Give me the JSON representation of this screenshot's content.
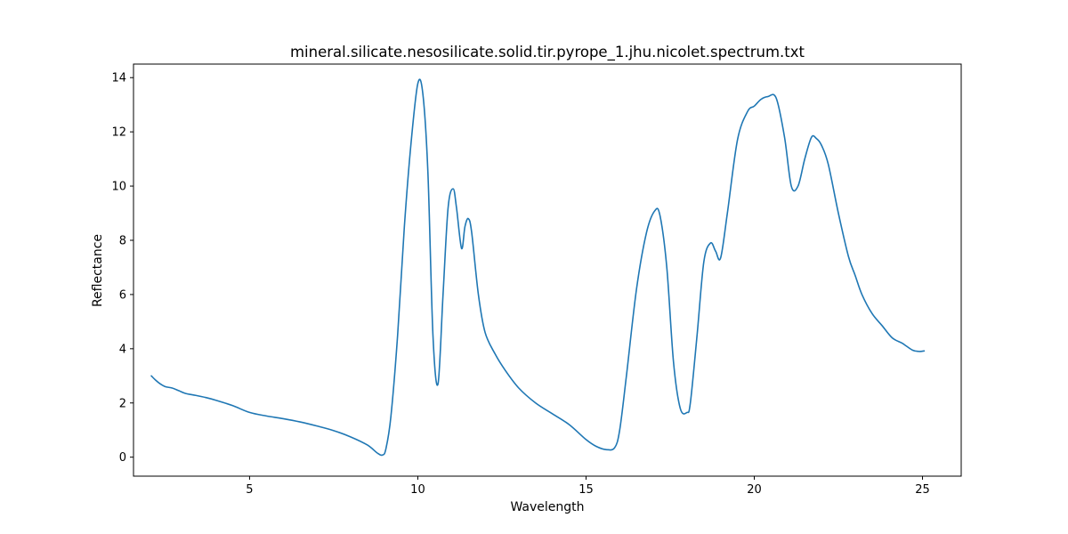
{
  "chart_data": {
    "type": "line",
    "title": "mineral.silicate.nesosilicate.solid.tir.pyrope_1.jhu.nicolet.spectrum.txt",
    "xlabel": "Wavelength",
    "ylabel": "Reflectance",
    "xlim": [
      1.55,
      26.15
    ],
    "ylim": [
      -0.7,
      14.5
    ],
    "xticks": [
      5,
      10,
      15,
      20,
      25
    ],
    "yticks": [
      0,
      2,
      4,
      6,
      8,
      10,
      12,
      14
    ],
    "grid": false,
    "series": [
      {
        "color": "#1f77b4",
        "x": [
          2.08,
          2.2,
          2.35,
          2.5,
          2.7,
          2.9,
          3.1,
          3.4,
          3.7,
          4.0,
          4.5,
          5.0,
          5.5,
          6.0,
          6.5,
          7.0,
          7.5,
          8.0,
          8.5,
          8.8,
          8.95,
          9.05,
          9.2,
          9.4,
          9.6,
          9.8,
          10.0,
          10.15,
          10.3,
          10.45,
          10.6,
          10.75,
          10.9,
          11.05,
          11.15,
          11.3,
          11.4,
          11.5,
          11.6,
          11.8,
          12.0,
          12.3,
          12.6,
          13.0,
          13.5,
          14.0,
          14.5,
          15.0,
          15.3,
          15.6,
          15.85,
          16.0,
          16.2,
          16.5,
          16.8,
          17.05,
          17.2,
          17.4,
          17.6,
          17.8,
          18.0,
          18.1,
          18.3,
          18.5,
          18.7,
          18.85,
          19.0,
          19.2,
          19.5,
          19.8,
          20.0,
          20.2,
          20.4,
          20.65,
          20.9,
          21.1,
          21.3,
          21.5,
          21.7,
          21.85,
          22.0,
          22.2,
          22.5,
          22.8,
          23.0,
          23.2,
          23.5,
          23.8,
          24.1,
          24.4,
          24.7,
          24.9,
          25.05
        ],
        "y": [
          3.0,
          2.85,
          2.7,
          2.6,
          2.55,
          2.45,
          2.35,
          2.28,
          2.2,
          2.1,
          1.9,
          1.65,
          1.52,
          1.42,
          1.3,
          1.15,
          0.98,
          0.75,
          0.45,
          0.15,
          0.08,
          0.3,
          1.5,
          4.5,
          8.5,
          11.6,
          13.78,
          13.4,
          10.5,
          4.5,
          2.7,
          6.0,
          9.2,
          9.9,
          9.2,
          7.7,
          8.5,
          8.8,
          8.3,
          6.0,
          4.6,
          3.8,
          3.2,
          2.55,
          2.0,
          1.6,
          1.2,
          0.65,
          0.4,
          0.28,
          0.35,
          1.0,
          3.0,
          6.2,
          8.3,
          9.1,
          8.9,
          7.0,
          3.5,
          1.8,
          1.65,
          2.0,
          4.5,
          7.2,
          7.9,
          7.6,
          7.35,
          9.0,
          11.7,
          12.75,
          12.95,
          13.2,
          13.3,
          13.25,
          11.8,
          10.0,
          10.0,
          11.0,
          11.8,
          11.75,
          11.5,
          10.8,
          9.0,
          7.4,
          6.7,
          6.0,
          5.3,
          4.85,
          4.4,
          4.2,
          3.95,
          3.9,
          3.92
        ]
      }
    ]
  }
}
